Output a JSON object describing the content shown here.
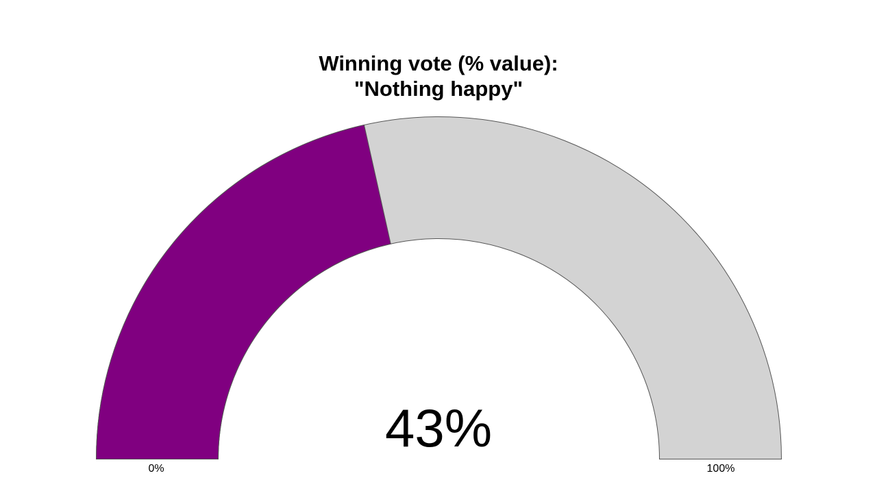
{
  "chart_data": {
    "type": "gauge",
    "title_lines": [
      "Winning vote (% value):",
      "\"Nothing happy\""
    ],
    "value": 43,
    "value_label": "43%",
    "min": 0,
    "max": 100,
    "min_label": "0%",
    "max_label": "100%",
    "fill_color": "#800080",
    "track_color": "#d3d3d3",
    "outline_color": "#555555"
  }
}
